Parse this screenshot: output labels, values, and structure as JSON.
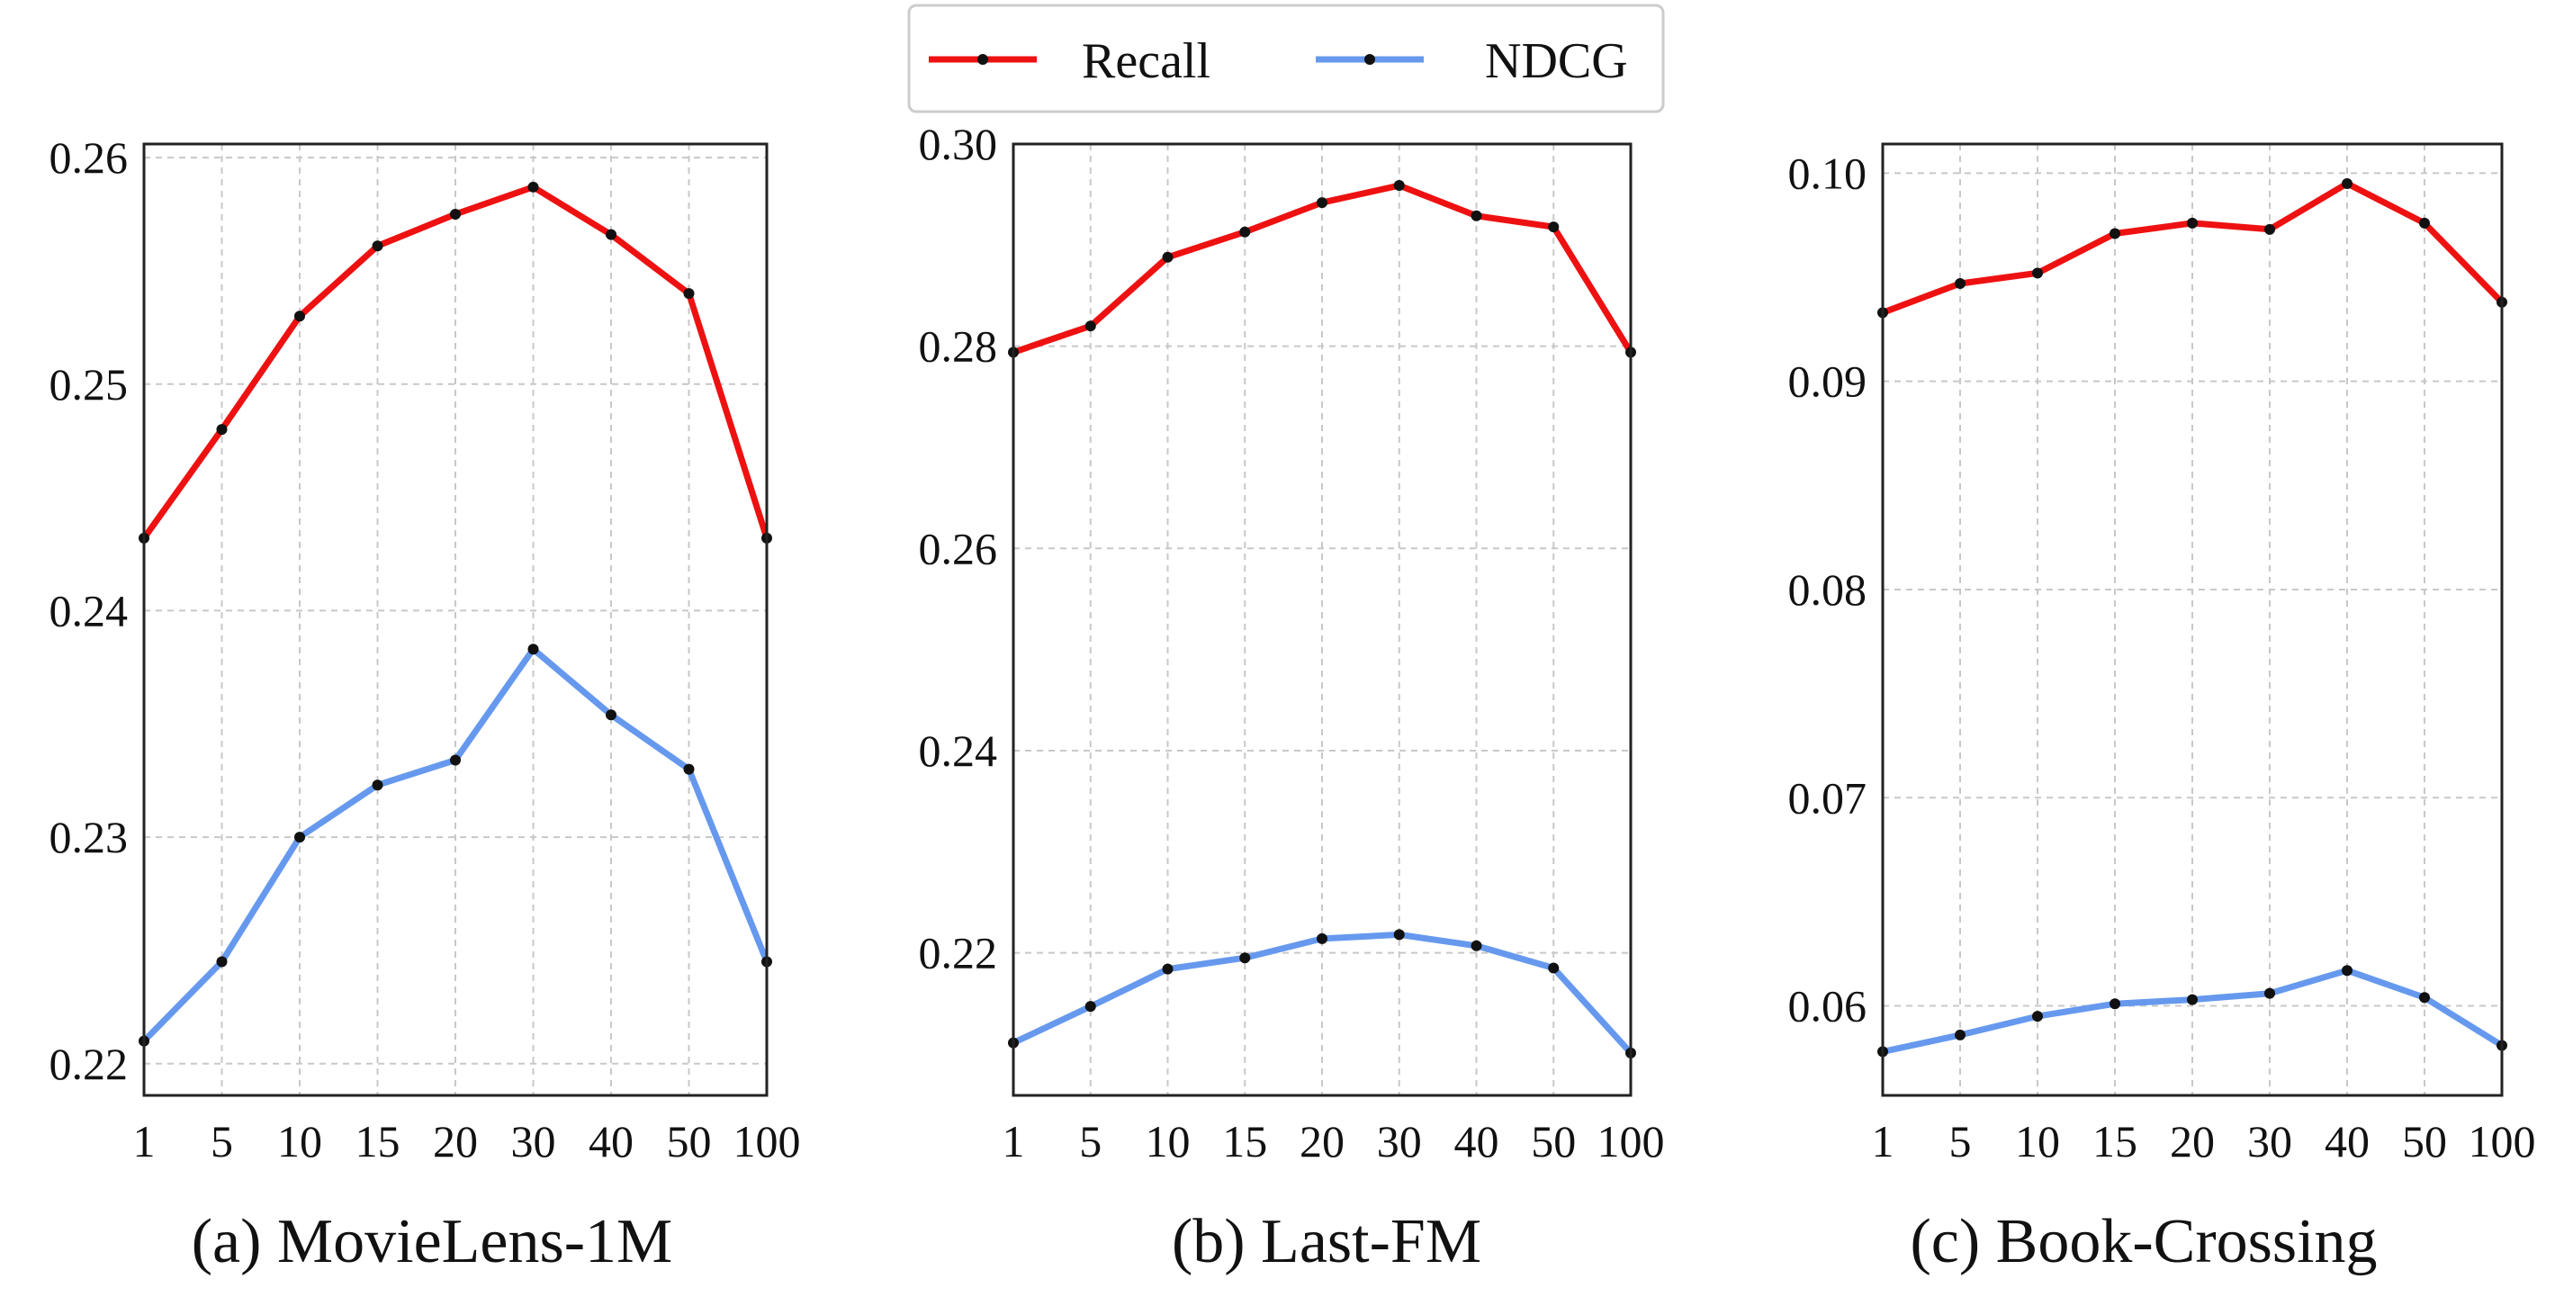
{
  "legend": {
    "entries": [
      {
        "label": "Recall",
        "color": "#ee1111"
      },
      {
        "label": "NDCG",
        "color": "#6699ee"
      }
    ]
  },
  "chart_data": [
    {
      "type": "line",
      "title": "(a) MovieLens-1M",
      "categories": [
        "1",
        "5",
        "10",
        "15",
        "20",
        "30",
        "40",
        "50",
        "100"
      ],
      "ylim": [
        0.2186,
        0.2606
      ],
      "yticks": [
        0.22,
        0.23,
        0.24,
        0.25,
        0.26
      ],
      "ytick_labels": [
        "0.22",
        "0.23",
        "0.24",
        "0.25",
        "0.26"
      ],
      "grid": true,
      "series": [
        {
          "name": "Recall",
          "values": [
            0.2432,
            0.248,
            0.253,
            0.2561,
            0.2575,
            0.2587,
            0.2566,
            0.254,
            0.2432
          ]
        },
        {
          "name": "NDCG",
          "values": [
            0.221,
            0.2245,
            0.23,
            0.2323,
            0.2334,
            0.2383,
            0.2354,
            0.233,
            0.2245
          ]
        }
      ]
    },
    {
      "type": "line",
      "title": "(b) Last-FM",
      "categories": [
        "1",
        "5",
        "10",
        "15",
        "20",
        "30",
        "40",
        "50",
        "100"
      ],
      "ylim": [
        0.2059,
        0.3
      ],
      "yticks": [
        0.22,
        0.24,
        0.26,
        0.28,
        0.3
      ],
      "ytick_labels": [
        "0.22",
        "0.24",
        "0.26",
        "0.28",
        "0.30"
      ],
      "grid": true,
      "series": [
        {
          "name": "Recall",
          "values": [
            0.2794,
            0.282,
            0.2888,
            0.2913,
            0.2942,
            0.2959,
            0.2929,
            0.2918,
            0.2794
          ]
        },
        {
          "name": "NDCG",
          "values": [
            0.2111,
            0.2147,
            0.2184,
            0.2195,
            0.2214,
            0.2218,
            0.2207,
            0.2185,
            0.2101
          ]
        }
      ]
    },
    {
      "type": "line",
      "title": "(c) Book-Crossing",
      "categories": [
        "1",
        "5",
        "10",
        "15",
        "20",
        "30",
        "40",
        "50",
        "100"
      ],
      "ylim": [
        0.0557,
        0.1014
      ],
      "yticks": [
        0.06,
        0.07,
        0.08,
        0.09,
        0.1
      ],
      "ytick_labels": [
        "0.06",
        "0.07",
        "0.08",
        "0.09",
        "0.10"
      ],
      "grid": true,
      "series": [
        {
          "name": "Recall",
          "values": [
            0.0933,
            0.0947,
            0.0952,
            0.0971,
            0.0976,
            0.0973,
            0.0995,
            0.0976,
            0.0938
          ]
        },
        {
          "name": "NDCG",
          "values": [
            0.0578,
            0.0586,
            0.0595,
            0.0601,
            0.0603,
            0.0606,
            0.0617,
            0.0604,
            0.0581
          ]
        }
      ]
    }
  ]
}
